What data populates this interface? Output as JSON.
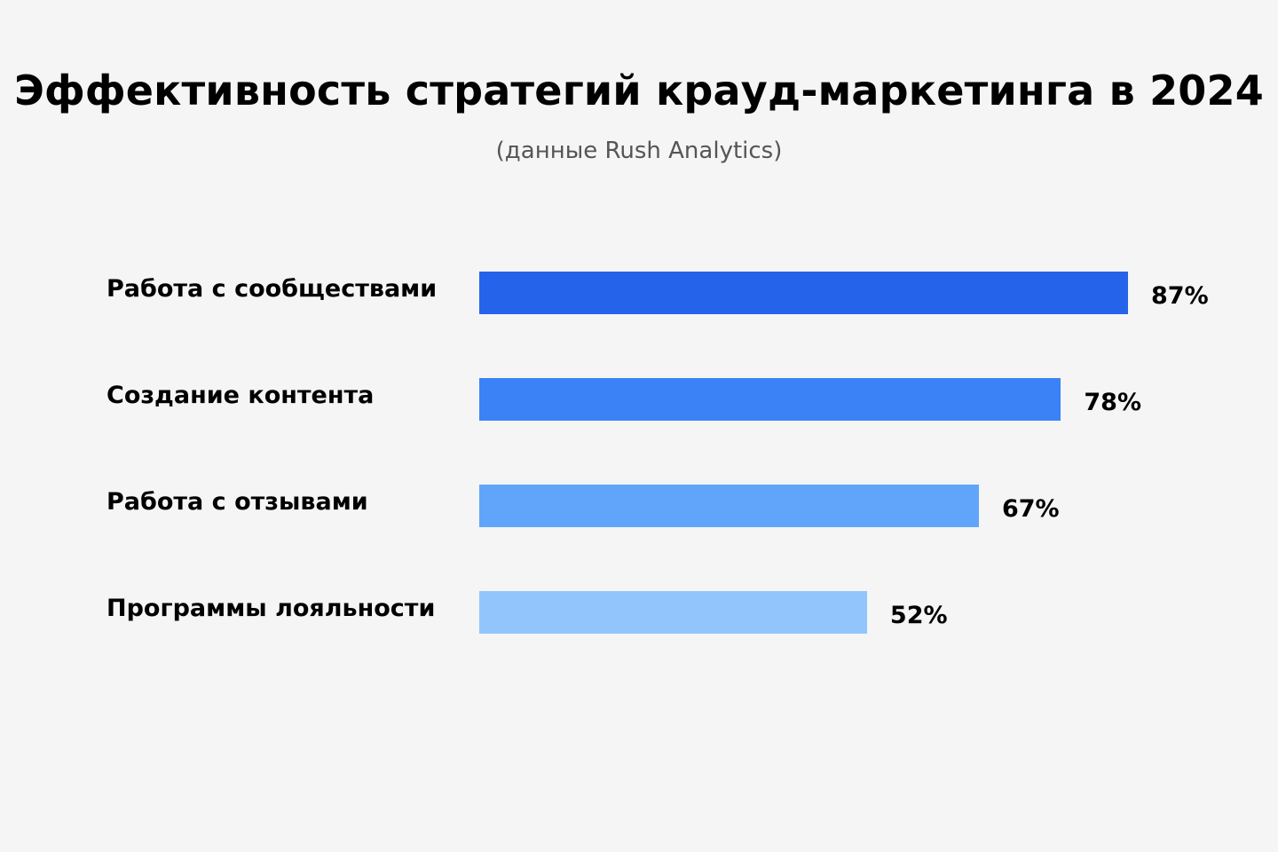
{
  "chart_data": {
    "type": "bar",
    "orientation": "horizontal",
    "title": "Эффективность стратегий крауд-маркетинга в 2024",
    "subtitle": "(данные Rush Analytics)",
    "categories": [
      "Работа с сообществами",
      "Создание контента",
      "Работа с отзывами",
      "Программы лояльности"
    ],
    "values": [
      87,
      78,
      67,
      52
    ],
    "value_labels": [
      "87%",
      "78%",
      "67%",
      "52%"
    ],
    "unit": "%",
    "xlim": [
      0,
      100
    ],
    "grid": false,
    "legend": "none",
    "bar_colors": [
      "#2563eb",
      "#3b82f6",
      "#60a5fa",
      "#93c5fd"
    ]
  }
}
